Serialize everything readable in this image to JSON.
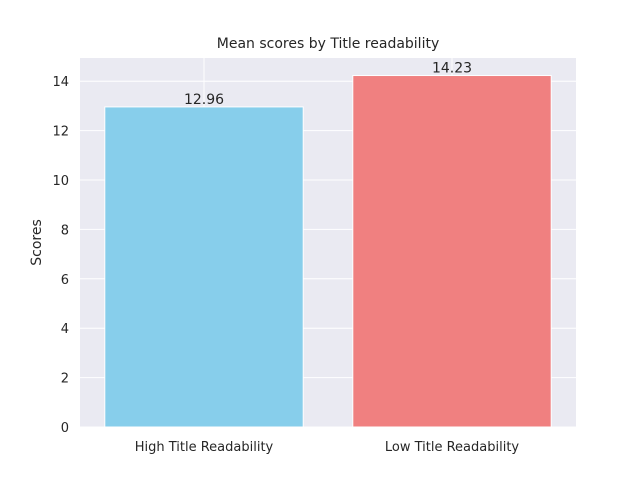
{
  "chart_data": {
    "type": "bar",
    "title": "Mean scores by Title readability",
    "xlabel": "",
    "ylabel": "Scores",
    "categories": [
      "High Title Readability",
      "Low Title Readability"
    ],
    "values": [
      12.96,
      14.23
    ],
    "value_labels": [
      "12.96",
      "14.23"
    ],
    "colors": [
      "#87ceeb",
      "#f08080"
    ],
    "ylim": [
      0,
      14.94
    ],
    "yticks": [
      0,
      2,
      4,
      6,
      8,
      10,
      12,
      14
    ],
    "ytick_labels": [
      "0",
      "2",
      "4",
      "6",
      "8",
      "10",
      "12",
      "14"
    ],
    "grid": true,
    "background": "#eaeaf2",
    "grid_color": "#ffffff"
  }
}
